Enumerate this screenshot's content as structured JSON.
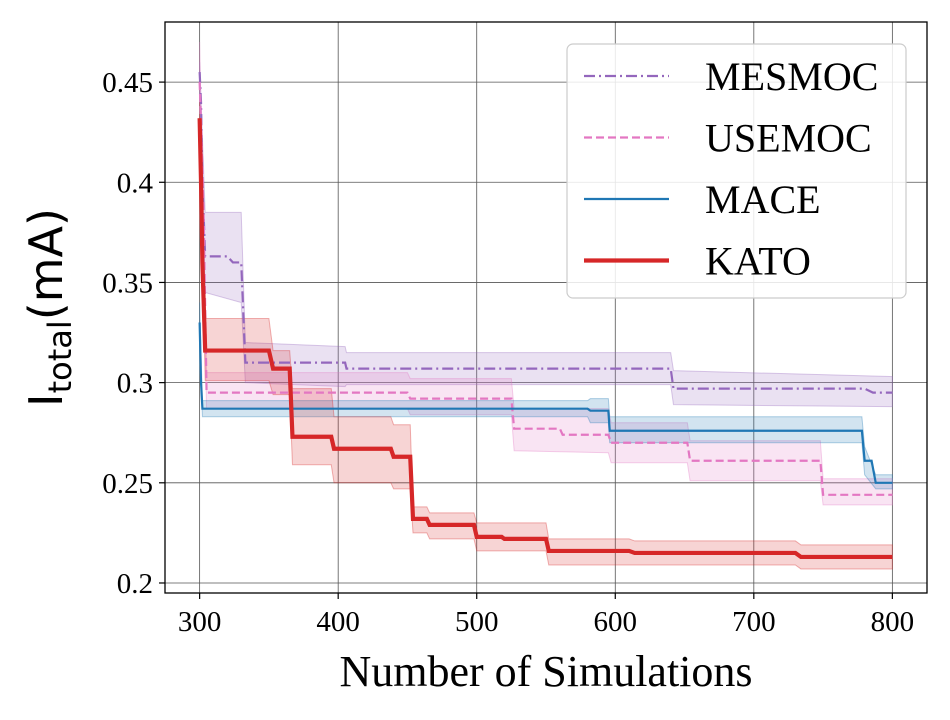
{
  "chart_data": {
    "type": "line",
    "title": "",
    "xlabel": "Number of Simulations",
    "ylabel": {
      "main": "I",
      "subscript": "total",
      "unit": "(mA)"
    },
    "xlim": [
      275,
      825
    ],
    "ylim": [
      0.195,
      0.48
    ],
    "xticks": [
      300,
      400,
      500,
      600,
      700,
      800
    ],
    "xtick_labels": [
      "300",
      "400",
      "500",
      "600",
      "700",
      "800"
    ],
    "yticks": [
      0.2,
      0.25,
      0.3,
      0.35,
      0.4,
      0.45
    ],
    "ytick_labels": [
      "0.2",
      "0.25",
      "0.3",
      "0.35",
      "0.4",
      "0.45"
    ],
    "grid": true,
    "legend_position": "top-right",
    "series": [
      {
        "name": "MESMOC",
        "color": "#9467bd",
        "style": "dashdot",
        "points": [
          [
            300,
            0.455
          ],
          [
            301,
            0.44
          ],
          [
            302,
            0.4
          ],
          [
            304,
            0.363
          ],
          [
            320,
            0.363
          ],
          [
            324,
            0.36
          ],
          [
            330,
            0.36
          ],
          [
            333,
            0.31
          ],
          [
            368,
            0.31
          ],
          [
            405,
            0.31
          ],
          [
            406,
            0.307
          ],
          [
            640,
            0.307
          ],
          [
            642,
            0.297
          ],
          [
            780,
            0.297
          ],
          [
            786,
            0.295
          ],
          [
            800,
            0.295
          ]
        ],
        "band": [
          [
            300,
            0.46,
            0.45
          ],
          [
            304,
            0.385,
            0.345
          ],
          [
            330,
            0.385,
            0.34
          ],
          [
            333,
            0.32,
            0.3
          ],
          [
            405,
            0.318,
            0.298
          ],
          [
            406,
            0.315,
            0.299
          ],
          [
            640,
            0.315,
            0.299
          ],
          [
            642,
            0.306,
            0.289
          ],
          [
            800,
            0.303,
            0.288
          ]
        ]
      },
      {
        "name": "USEMOC",
        "color": "#e377c2",
        "style": "dashed",
        "points": [
          [
            300,
            0.45
          ],
          [
            301,
            0.43
          ],
          [
            303,
            0.38
          ],
          [
            305,
            0.295
          ],
          [
            450,
            0.295
          ],
          [
            452,
            0.292
          ],
          [
            525,
            0.292
          ],
          [
            527,
            0.277
          ],
          [
            560,
            0.277
          ],
          [
            562,
            0.274
          ],
          [
            595,
            0.274
          ],
          [
            597,
            0.27
          ],
          [
            652,
            0.27
          ],
          [
            654,
            0.261
          ],
          [
            748,
            0.261
          ],
          [
            750,
            0.244
          ],
          [
            800,
            0.244
          ]
        ],
        "band": [
          [
            300,
            0.47,
            0.44
          ],
          [
            305,
            0.305,
            0.287
          ],
          [
            450,
            0.305,
            0.287
          ],
          [
            452,
            0.302,
            0.284
          ],
          [
            525,
            0.302,
            0.284
          ],
          [
            527,
            0.287,
            0.266
          ],
          [
            595,
            0.287,
            0.265
          ],
          [
            597,
            0.28,
            0.26
          ],
          [
            652,
            0.28,
            0.26
          ],
          [
            654,
            0.271,
            0.251
          ],
          [
            748,
            0.271,
            0.251
          ],
          [
            750,
            0.252,
            0.239
          ],
          [
            800,
            0.252,
            0.239
          ]
        ]
      },
      {
        "name": "MACE",
        "color": "#1f77b4",
        "style": "solid",
        "points": [
          [
            300,
            0.33
          ],
          [
            301,
            0.3
          ],
          [
            302,
            0.287
          ],
          [
            500,
            0.287
          ],
          [
            580,
            0.287
          ],
          [
            582,
            0.286
          ],
          [
            595,
            0.286
          ],
          [
            596,
            0.276
          ],
          [
            778,
            0.276
          ],
          [
            780,
            0.261
          ],
          [
            785,
            0.261
          ],
          [
            788,
            0.25
          ],
          [
            800,
            0.25
          ]
        ],
        "band": [
          [
            300,
            0.34,
            0.32
          ],
          [
            302,
            0.291,
            0.283
          ],
          [
            580,
            0.291,
            0.283
          ],
          [
            582,
            0.292,
            0.28
          ],
          [
            595,
            0.292,
            0.28
          ],
          [
            596,
            0.283,
            0.27
          ],
          [
            778,
            0.283,
            0.27
          ],
          [
            780,
            0.268,
            0.254
          ],
          [
            788,
            0.254,
            0.247
          ],
          [
            800,
            0.254,
            0.247
          ]
        ]
      },
      {
        "name": "KATO",
        "color": "#d62728",
        "style": "solid-thick",
        "points": [
          [
            300,
            0.432
          ],
          [
            301,
            0.4
          ],
          [
            302,
            0.36
          ],
          [
            304,
            0.316
          ],
          [
            350,
            0.316
          ],
          [
            353,
            0.307
          ],
          [
            365,
            0.307
          ],
          [
            367,
            0.273
          ],
          [
            395,
            0.273
          ],
          [
            397,
            0.267
          ],
          [
            438,
            0.267
          ],
          [
            440,
            0.263
          ],
          [
            452,
            0.263
          ],
          [
            454,
            0.232
          ],
          [
            464,
            0.232
          ],
          [
            466,
            0.229
          ],
          [
            498,
            0.229
          ],
          [
            500,
            0.223
          ],
          [
            518,
            0.223
          ],
          [
            520,
            0.222
          ],
          [
            550,
            0.222
          ],
          [
            552,
            0.216
          ],
          [
            610,
            0.216
          ],
          [
            614,
            0.215
          ],
          [
            730,
            0.215
          ],
          [
            734,
            0.213
          ],
          [
            800,
            0.213
          ]
        ],
        "band": [
          [
            300,
            0.44,
            0.425
          ],
          [
            304,
            0.332,
            0.301
          ],
          [
            350,
            0.332,
            0.301
          ],
          [
            353,
            0.316,
            0.294
          ],
          [
            365,
            0.316,
            0.294
          ],
          [
            367,
            0.297,
            0.259
          ],
          [
            395,
            0.297,
            0.259
          ],
          [
            397,
            0.283,
            0.25
          ],
          [
            438,
            0.283,
            0.25
          ],
          [
            440,
            0.279,
            0.247
          ],
          [
            452,
            0.279,
            0.247
          ],
          [
            454,
            0.238,
            0.225
          ],
          [
            464,
            0.238,
            0.225
          ],
          [
            466,
            0.235,
            0.222
          ],
          [
            498,
            0.235,
            0.222
          ],
          [
            500,
            0.23,
            0.216
          ],
          [
            550,
            0.23,
            0.216
          ],
          [
            552,
            0.222,
            0.209
          ],
          [
            610,
            0.222,
            0.209
          ],
          [
            614,
            0.221,
            0.209
          ],
          [
            730,
            0.221,
            0.209
          ],
          [
            734,
            0.219,
            0.207
          ],
          [
            800,
            0.219,
            0.207
          ]
        ]
      }
    ]
  }
}
